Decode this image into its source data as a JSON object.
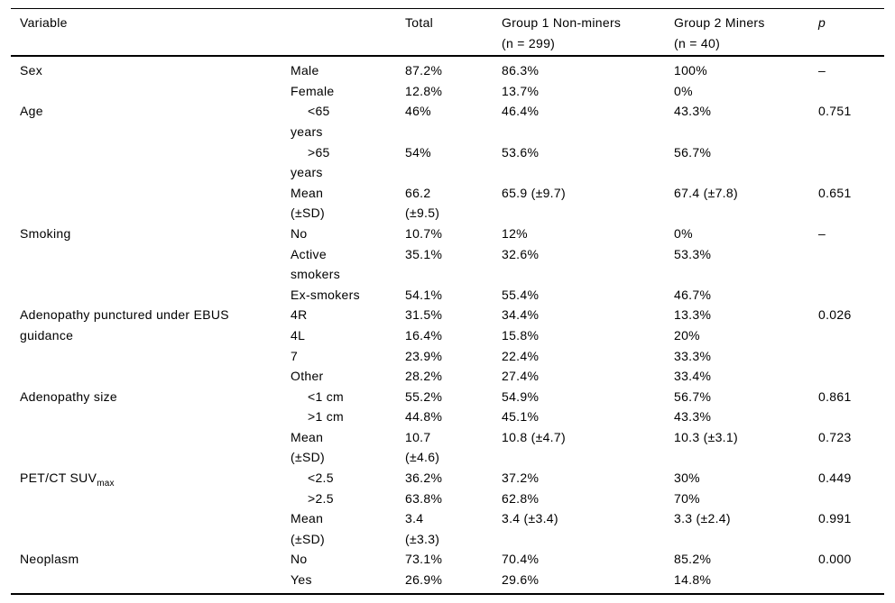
{
  "table": {
    "columns": [
      {
        "label": "Variable"
      },
      {
        "label": ""
      },
      {
        "label": "Total"
      },
      {
        "label": "Group 1 Non-miners\n(n = 299)"
      },
      {
        "label": "Group 2 Miners\n(n = 40)"
      },
      {
        "label": "p",
        "italic": true
      }
    ],
    "groups": [
      {
        "variable": "Sex",
        "rows": [
          {
            "sub": "Male",
            "total": "87.2%",
            "group1": "86.3%",
            "group2": "100%",
            "p": "–"
          },
          {
            "sub": "Female",
            "total": "12.8%",
            "group1": "13.7%",
            "group2": "0%",
            "p": ""
          }
        ]
      },
      {
        "variable": "Age",
        "rows": [
          {
            "sub": "<65\nyears",
            "indent": true,
            "total": "46%",
            "group1": "46.4%",
            "group2": "43.3%",
            "p": "0.751"
          },
          {
            "sub": ">65\nyears",
            "indent": true,
            "total": "54%",
            "group1": "53.6%",
            "group2": "56.7%",
            "p": ""
          },
          {
            "sub": "Mean\n(±SD)",
            "total": "66.2\n(±9.5)",
            "group1": "65.9 (±9.7)",
            "group2": "67.4 (±7.8)",
            "p": "0.651"
          }
        ]
      },
      {
        "variable": "Smoking",
        "rows": [
          {
            "sub": "No",
            "total": "10.7%",
            "group1": "12%",
            "group2": "0%",
            "p": "–"
          },
          {
            "sub": "Active\nsmokers",
            "total": "35.1%",
            "group1": "32.6%",
            "group2": "53.3%",
            "p": ""
          },
          {
            "sub": "Ex-smokers",
            "total": "54.1%",
            "group1": "55.4%",
            "group2": "46.7%",
            "p": ""
          }
        ]
      },
      {
        "variable": "Adenopathy punctured under EBUS\nguidance",
        "rows": [
          {
            "sub": "4R",
            "total": "31.5%",
            "group1": "34.4%",
            "group2": "13.3%",
            "p": "0.026"
          },
          {
            "sub": "4L",
            "total": "16.4%",
            "group1": "15.8%",
            "group2": "20%",
            "p": ""
          },
          {
            "sub": "7",
            "total": "23.9%",
            "group1": "22.4%",
            "group2": "33.3%",
            "p": ""
          },
          {
            "sub": "Other",
            "total": "28.2%",
            "group1": "27.4%",
            "group2": "33.4%",
            "p": ""
          }
        ]
      },
      {
        "variable": "Adenopathy size",
        "rows": [
          {
            "sub": "<1 cm",
            "indent": true,
            "total": "55.2%",
            "group1": "54.9%",
            "group2": "56.7%",
            "p": "0.861"
          },
          {
            "sub": ">1 cm",
            "indent": true,
            "total": "44.8%",
            "group1": "45.1%",
            "group2": "43.3%",
            "p": ""
          },
          {
            "sub": "Mean\n(±SD)",
            "total": "10.7\n(±4.6)",
            "group1": "10.8 (±4.7)",
            "group2": "10.3 (±3.1)",
            "p": "0.723"
          }
        ]
      },
      {
        "variable": "PET/CT SUV",
        "variable_subscript": "max",
        "rows": [
          {
            "sub": "<2.5",
            "indent": true,
            "total": "36.2%",
            "group1": "37.2%",
            "group2": "30%",
            "p": "0.449"
          },
          {
            "sub": ">2.5",
            "indent": true,
            "total": "63.8%",
            "group1": "62.8%",
            "group2": "70%",
            "p": ""
          },
          {
            "sub": "Mean\n(±SD)",
            "total": "3.4\n(±3.3)",
            "group1": "3.4 (±3.4)",
            "group2": "3.3 (±2.4)",
            "p": "0.991"
          }
        ]
      },
      {
        "variable": "Neoplasm",
        "rows": [
          {
            "sub": "No",
            "total": "73.1%",
            "group1": "70.4%",
            "group2": "85.2%",
            "p": "0.000"
          },
          {
            "sub": "Yes",
            "total": "26.9%",
            "group1": "29.6%",
            "group2": "14.8%",
            "p": ""
          }
        ]
      }
    ]
  }
}
